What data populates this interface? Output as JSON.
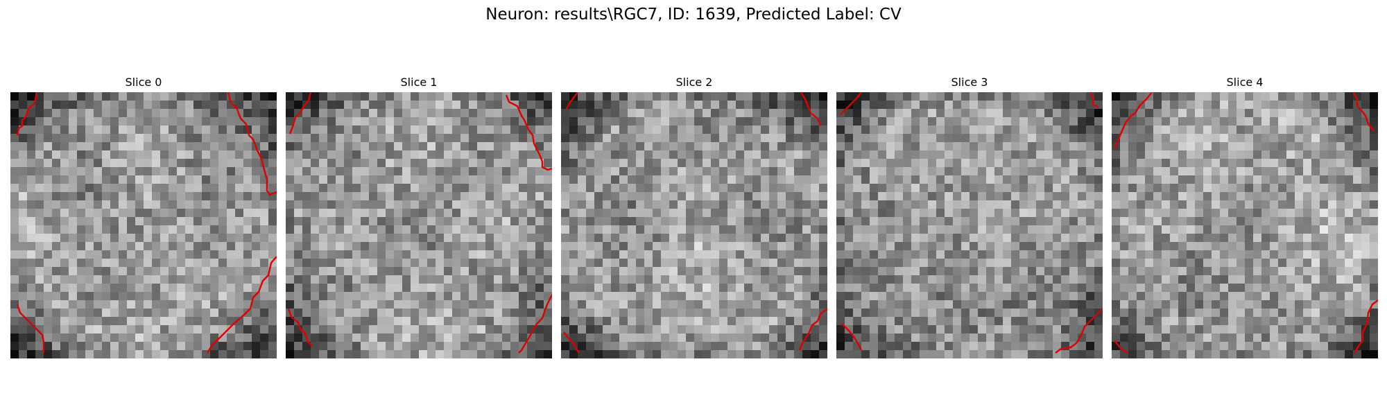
{
  "figure": {
    "title": "Neuron: results\\RGC7, ID: 1639, Predicted Label: CV"
  },
  "slices": [
    {
      "title": "Slice 0",
      "seed": 11,
      "contours": [
        [
          [
            38,
            0
          ],
          [
            35,
            16
          ],
          [
            26,
            24
          ],
          [
            22,
            36
          ],
          [
            17,
            40
          ],
          [
            17,
            49
          ],
          [
            12,
            52
          ],
          [
            10,
            62
          ]
        ],
        [
          [
            314,
            0
          ],
          [
            318,
            16
          ],
          [
            326,
            22
          ],
          [
            332,
            38
          ],
          [
            340,
            46
          ],
          [
            344,
            62
          ],
          [
            350,
            68
          ],
          [
            356,
            84
          ],
          [
            362,
            96
          ],
          [
            366,
            112
          ],
          [
            370,
            126
          ],
          [
            370,
            142
          ],
          [
            374,
            148
          ],
          [
            384,
            144
          ]
        ],
        [
          [
            384,
            237
          ],
          [
            376,
            246
          ],
          [
            372,
            264
          ],
          [
            364,
            272
          ],
          [
            358,
            288
          ],
          [
            350,
            296
          ],
          [
            346,
            312
          ],
          [
            338,
            320
          ],
          [
            322,
            334
          ],
          [
            306,
            350
          ],
          [
            290,
            366
          ],
          [
            284,
            376
          ]
        ],
        [
          [
            10,
            306
          ],
          [
            14,
            318
          ],
          [
            22,
            326
          ],
          [
            30,
            334
          ],
          [
            38,
            342
          ],
          [
            46,
            350
          ],
          [
            48,
            360
          ],
          [
            48,
            376
          ]
        ]
      ]
    },
    {
      "title": "Slice 1",
      "seed": 23,
      "contours": [
        [
          [
            36,
            0
          ],
          [
            33,
            12
          ],
          [
            26,
            20
          ],
          [
            22,
            28
          ],
          [
            14,
            36
          ],
          [
            10,
            50
          ],
          [
            6,
            60
          ]
        ],
        [
          [
            318,
            4
          ],
          [
            322,
            14
          ],
          [
            334,
            20
          ],
          [
            340,
            34
          ],
          [
            344,
            40
          ],
          [
            350,
            54
          ],
          [
            356,
            62
          ],
          [
            358,
            74
          ],
          [
            362,
            82
          ],
          [
            366,
            90
          ],
          [
            370,
            100
          ],
          [
            370,
            108
          ],
          [
            378,
            112
          ],
          [
            384,
            110
          ]
        ],
        [
          [
            384,
            292
          ],
          [
            378,
            304
          ],
          [
            374,
            314
          ],
          [
            370,
            326
          ],
          [
            362,
            334
          ],
          [
            356,
            344
          ],
          [
            352,
            352
          ],
          [
            346,
            362
          ],
          [
            340,
            372
          ],
          [
            336,
            376
          ]
        ],
        [
          [
            4,
            312
          ],
          [
            8,
            324
          ],
          [
            18,
            332
          ],
          [
            20,
            340
          ],
          [
            28,
            348
          ],
          [
            32,
            360
          ],
          [
            38,
            366
          ]
        ]
      ]
    },
    {
      "title": "Slice 2",
      "seed": 37,
      "contours": [
        [
          [
            24,
            0
          ],
          [
            18,
            8
          ],
          [
            12,
            16
          ],
          [
            8,
            24
          ]
        ],
        [
          [
            346,
            0
          ],
          [
            352,
            10
          ],
          [
            356,
            20
          ],
          [
            360,
            30
          ],
          [
            370,
            38
          ],
          [
            374,
            48
          ]
        ],
        [
          [
            384,
            312
          ],
          [
            374,
            320
          ],
          [
            370,
            330
          ],
          [
            362,
            336
          ],
          [
            358,
            346
          ],
          [
            352,
            356
          ],
          [
            348,
            362
          ],
          [
            344,
            372
          ]
        ],
        [
          [
            4,
            346
          ],
          [
            10,
            354
          ],
          [
            18,
            362
          ],
          [
            22,
            370
          ],
          [
            26,
            376
          ]
        ]
      ]
    },
    {
      "title": "Slice 3",
      "seed": 49,
      "contours": [
        [
          [
            36,
            0
          ],
          [
            28,
            10
          ],
          [
            22,
            16
          ],
          [
            14,
            24
          ],
          [
            6,
            32
          ]
        ],
        [
          [
            366,
            0
          ],
          [
            370,
            8
          ],
          [
            370,
            18
          ],
          [
            378,
            22
          ]
        ],
        [
          [
            384,
            312
          ],
          [
            374,
            322
          ],
          [
            366,
            330
          ],
          [
            358,
            338
          ],
          [
            354,
            348
          ],
          [
            350,
            356
          ],
          [
            346,
            362
          ],
          [
            338,
            368
          ],
          [
            324,
            370
          ],
          [
            316,
            376
          ]
        ],
        [
          [
            8,
            334
          ],
          [
            18,
            344
          ],
          [
            26,
            354
          ],
          [
            32,
            364
          ],
          [
            36,
            372
          ]
        ]
      ]
    },
    {
      "title": "Slice 4",
      "seed": 61,
      "contours": [
        [
          [
            58,
            0
          ],
          [
            50,
            10
          ],
          [
            40,
            20
          ],
          [
            34,
            30
          ],
          [
            28,
            34
          ],
          [
            20,
            44
          ],
          [
            14,
            58
          ],
          [
            8,
            72
          ],
          [
            4,
            80
          ]
        ],
        [
          [
            348,
            0
          ],
          [
            354,
            10
          ],
          [
            354,
            20
          ],
          [
            360,
            26
          ],
          [
            366,
            34
          ],
          [
            370,
            46
          ],
          [
            378,
            56
          ]
        ],
        [
          [
            384,
            300
          ],
          [
            376,
            306
          ],
          [
            370,
            318
          ],
          [
            368,
            334
          ],
          [
            362,
            346
          ],
          [
            362,
            358
          ],
          [
            356,
            366
          ],
          [
            350,
            376
          ]
        ],
        [
          [
            4,
            358
          ],
          [
            10,
            366
          ],
          [
            16,
            372
          ],
          [
            24,
            376
          ]
        ]
      ]
    }
  ]
}
